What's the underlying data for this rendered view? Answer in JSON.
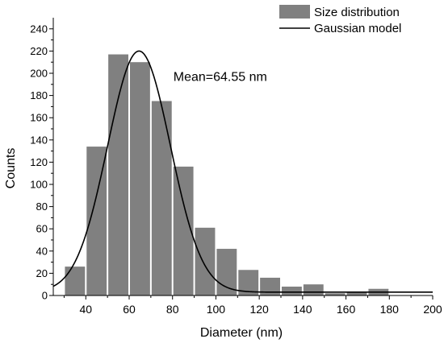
{
  "chart_data": {
    "type": "bar",
    "xlabel": "Diameter (nm)",
    "ylabel": "Counts",
    "xlim": [
      25,
      200
    ],
    "ylim": [
      0,
      250
    ],
    "x_ticks": [
      40,
      60,
      80,
      100,
      120,
      140,
      160,
      180,
      200
    ],
    "y_ticks": [
      0,
      20,
      40,
      60,
      80,
      100,
      120,
      140,
      160,
      180,
      200,
      220,
      240
    ],
    "bar_width": 10,
    "series": [
      {
        "name": "Size distribution",
        "type": "bar",
        "color": "#808080",
        "x": [
          35,
          45,
          55,
          65,
          75,
          85,
          95,
          105,
          115,
          125,
          135,
          145,
          155,
          165,
          175
        ],
        "values": [
          26,
          134,
          217,
          210,
          175,
          116,
          61,
          42,
          23,
          16,
          8,
          10,
          2,
          3,
          6
        ]
      },
      {
        "name": "Gaussian model",
        "type": "line",
        "color": "#000000",
        "mean": 64.55,
        "sigma": 14.5,
        "peak": 220,
        "baseline": 3
      }
    ],
    "annotations": [
      {
        "text": "Mean=64.55 nm",
        "x": 102,
        "y": 193
      }
    ],
    "legend": {
      "position": "top-right"
    },
    "grid": false
  }
}
